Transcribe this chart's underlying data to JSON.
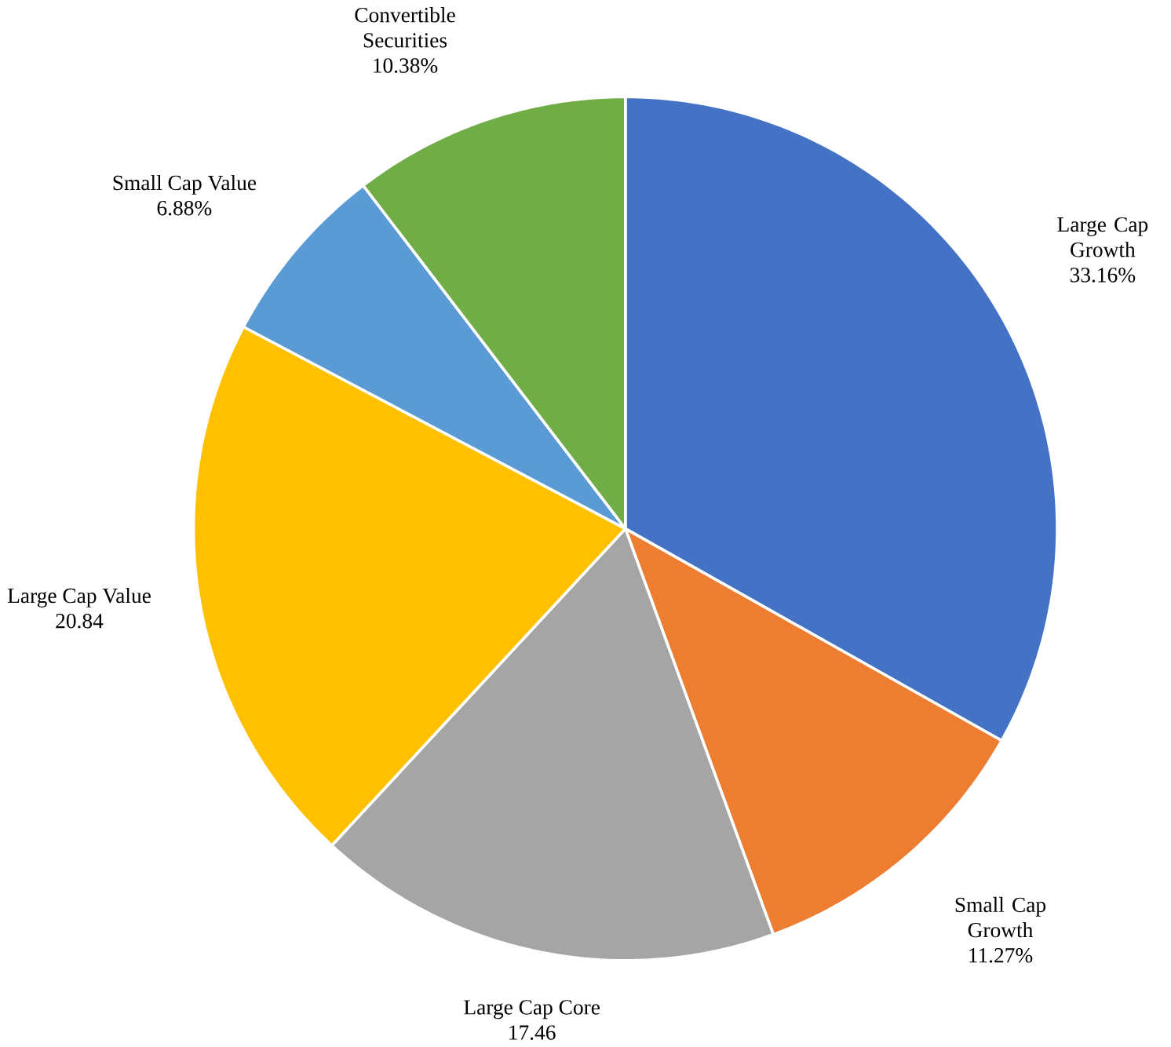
{
  "chart_data": {
    "type": "pie",
    "categories": [
      "Large Cap Growth",
      "Small Cap Growth",
      "Large Cap Core",
      "Large Cap Value",
      "Small Cap Value",
      "Convertible Securities"
    ],
    "values": [
      33.16,
      11.27,
      17.46,
      20.84,
      6.88,
      10.38
    ],
    "value_labels": [
      "33.16%",
      "11.27%",
      "17.46",
      "20.84",
      "6.88%",
      "10.38%"
    ],
    "colors": [
      "#4472c4",
      "#ed7d31",
      "#a5a5a5",
      "#ffc000",
      "#5b9bd5",
      "#70ad47"
    ]
  }
}
